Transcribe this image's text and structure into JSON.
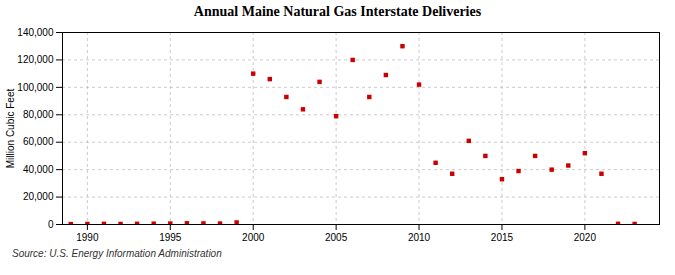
{
  "chart_data": {
    "type": "scatter",
    "title": "Annual Maine Natural Gas Interstate Deliveries",
    "ylabel": "Million Cubic Feet",
    "source": "Source: U.S. Energy Information Administration",
    "x": [
      1989,
      1990,
      1991,
      1992,
      1993,
      1994,
      1995,
      1996,
      1997,
      1998,
      1999,
      2000,
      2001,
      2002,
      2003,
      2004,
      2005,
      2006,
      2007,
      2008,
      2009,
      2010,
      2011,
      2012,
      2013,
      2014,
      2015,
      2016,
      2017,
      2018,
      2019,
      2020,
      2021,
      2022,
      2023
    ],
    "values": [
      300,
      400,
      500,
      400,
      500,
      600,
      700,
      900,
      800,
      700,
      1500,
      110000,
      106000,
      93000,
      84000,
      104000,
      79000,
      120000,
      93000,
      109000,
      130000,
      102000,
      45000,
      37000,
      61000,
      50000,
      33000,
      39000,
      50000,
      40000,
      43000,
      52000,
      37000,
      500,
      400
    ],
    "color": "#cc0000",
    "marker": "square",
    "xlim": [
      1988.5,
      2024.5
    ],
    "xticks": [
      1990,
      1995,
      2000,
      2005,
      2010,
      2015,
      2020
    ],
    "ylim": [
      0,
      140000
    ],
    "yticks": [
      0,
      {
        "value": 20000,
        "label": "20,000"
      },
      {
        "value": 40000,
        "label": "40,000"
      },
      {
        "value": 60000,
        "label": "60,000"
      },
      {
        "value": 80000,
        "label": "80,000"
      },
      {
        "value": 100000,
        "label": "100,000"
      },
      {
        "value": 120000,
        "label": "120,000"
      },
      {
        "value": 140000,
        "label": "140,000"
      }
    ],
    "grid": true
  }
}
